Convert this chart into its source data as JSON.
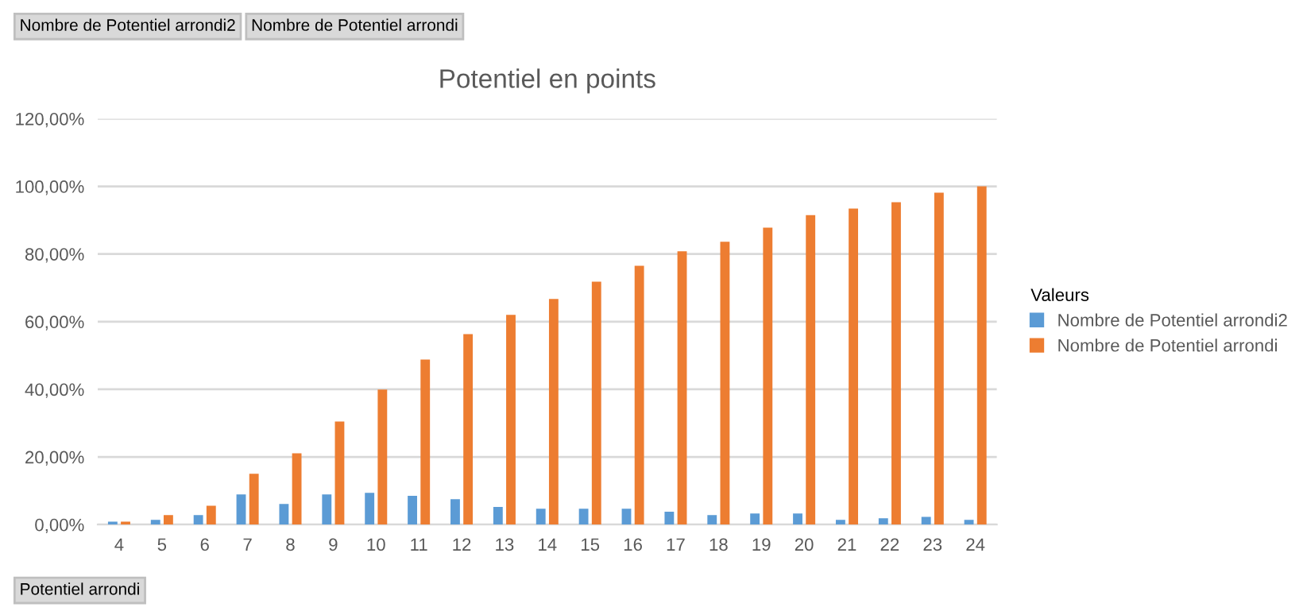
{
  "chart_data": {
    "type": "bar",
    "title": "Potentiel en points",
    "categories": [
      "4",
      "5",
      "6",
      "7",
      "8",
      "9",
      "10",
      "11",
      "12",
      "13",
      "14",
      "15",
      "16",
      "17",
      "18",
      "19",
      "20",
      "21",
      "22",
      "23",
      "24"
    ],
    "series": [
      {
        "name": "Nombre de Potentiel arrondi2",
        "color": "#5b9bd5",
        "values": [
          0.9,
          1.4,
          2.8,
          8.9,
          6.1,
          8.9,
          9.4,
          8.5,
          7.5,
          5.2,
          4.7,
          4.7,
          4.7,
          3.8,
          2.8,
          3.3,
          3.3,
          1.4,
          1.9,
          2.3,
          1.4
        ]
      },
      {
        "name": "Nombre de Potentiel arrondi",
        "color": "#ed7d31",
        "values": [
          0.9,
          2.8,
          5.6,
          15.0,
          21.1,
          30.5,
          39.9,
          48.8,
          56.3,
          62.0,
          66.7,
          71.8,
          76.5,
          80.8,
          83.6,
          87.8,
          91.5,
          93.4,
          95.3,
          98.1,
          100
        ]
      }
    ],
    "ylim": [
      0,
      120
    ],
    "yticks": [
      {
        "value": 0,
        "label": "0,00%"
      },
      {
        "value": 20,
        "label": "20,00%"
      },
      {
        "value": 40,
        "label": "40,00%"
      },
      {
        "value": 60,
        "label": "60,00%"
      },
      {
        "value": 80,
        "label": "80,00%"
      },
      {
        "value": 100,
        "label": "100,00%"
      },
      {
        "value": 120,
        "label": "120,00%"
      }
    ],
    "grid": "y",
    "legend": "right",
    "legend_title": "Valeurs",
    "annotations": [
      "Nombre de Potentiel arrondi2",
      "Nombre de Potentiel arrondi",
      "Potentiel arrondi"
    ]
  }
}
